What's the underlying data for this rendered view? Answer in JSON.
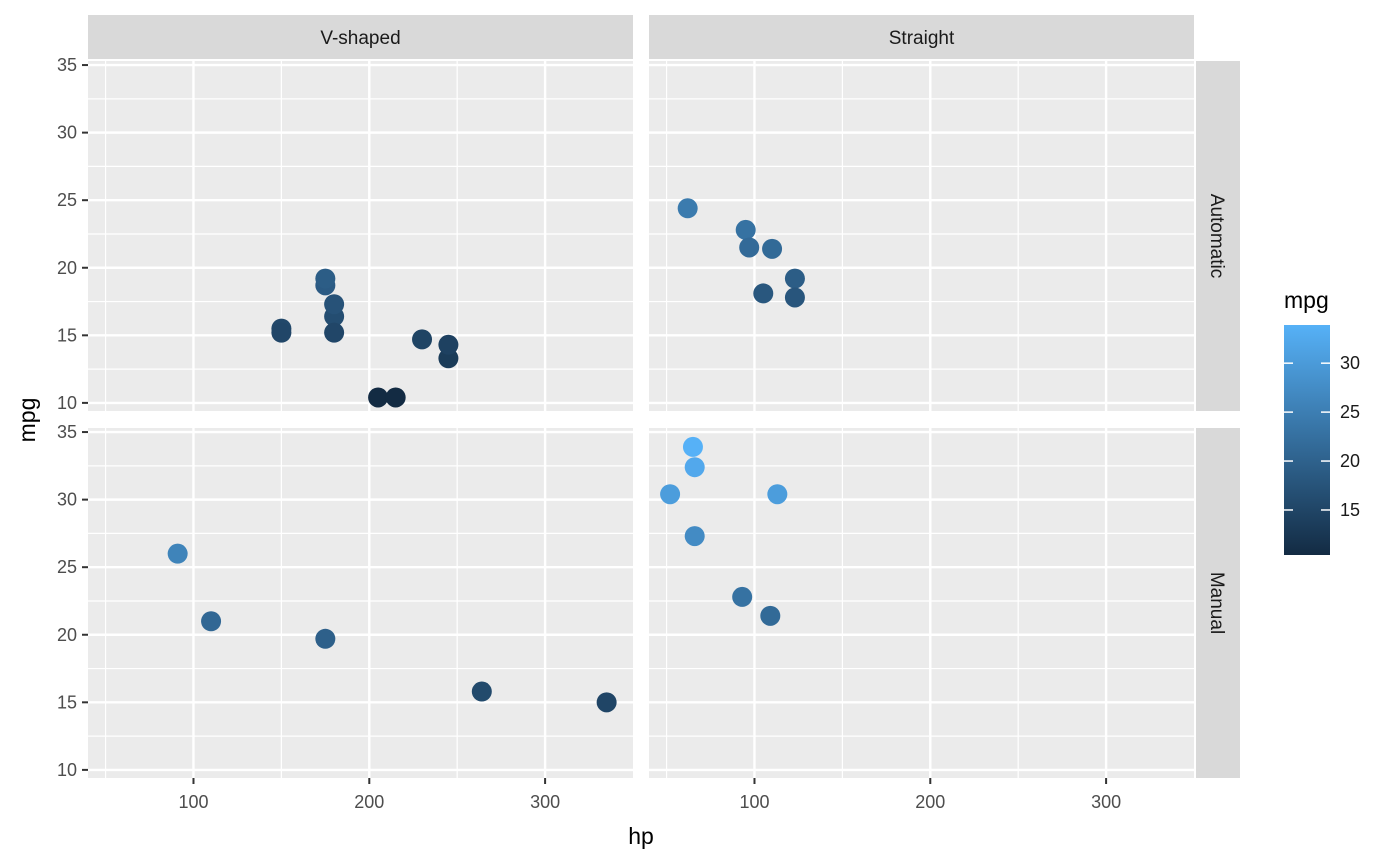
{
  "chart_data": {
    "type": "scatter",
    "xlabel": "hp",
    "ylabel": "mpg",
    "xlim": [
      40,
      350
    ],
    "ylim": [
      9.4,
      35.3
    ],
    "x_ticks": [
      100,
      200,
      300
    ],
    "y_ticks": [
      10,
      15,
      20,
      25,
      30,
      35
    ],
    "grid": true,
    "facet_cols": [
      "V-shaped",
      "Straight"
    ],
    "facet_rows": [
      "Automatic",
      "Manual"
    ],
    "color_legend": {
      "title": "mpg",
      "ticks": [
        15,
        20,
        25,
        30
      ],
      "range": [
        10.4,
        33.9
      ],
      "low_color": "#132B43",
      "high_color": "#56B1F7",
      "placement": "right"
    },
    "panels": [
      {
        "col": "V-shaped",
        "row": "Automatic",
        "points": [
          {
            "x": 175,
            "y": 18.7
          },
          {
            "x": 180,
            "y": 16.4
          },
          {
            "x": 180,
            "y": 17.3
          },
          {
            "x": 180,
            "y": 15.2
          },
          {
            "x": 205,
            "y": 10.4
          },
          {
            "x": 215,
            "y": 10.4
          },
          {
            "x": 230,
            "y": 14.7
          },
          {
            "x": 150,
            "y": 15.5
          },
          {
            "x": 150,
            "y": 15.2
          },
          {
            "x": 245,
            "y": 13.3
          },
          {
            "x": 175,
            "y": 19.2
          },
          {
            "x": 245,
            "y": 14.3
          }
        ]
      },
      {
        "col": "Straight",
        "row": "Automatic",
        "points": [
          {
            "x": 110,
            "y": 21.4
          },
          {
            "x": 105,
            "y": 18.1
          },
          {
            "x": 62,
            "y": 24.4
          },
          {
            "x": 95,
            "y": 22.8
          },
          {
            "x": 123,
            "y": 19.2
          },
          {
            "x": 123,
            "y": 17.8
          },
          {
            "x": 97,
            "y": 21.5
          }
        ]
      },
      {
        "col": "V-shaped",
        "row": "Manual",
        "points": [
          {
            "x": 110,
            "y": 21.0
          },
          {
            "x": 175,
            "y": 19.7
          },
          {
            "x": 91,
            "y": 26.0
          },
          {
            "x": 264,
            "y": 15.8
          },
          {
            "x": 335,
            "y": 15.0
          }
        ]
      },
      {
        "col": "Straight",
        "row": "Manual",
        "points": [
          {
            "x": 93,
            "y": 22.8
          },
          {
            "x": 66,
            "y": 32.4
          },
          {
            "x": 52,
            "y": 30.4
          },
          {
            "x": 65,
            "y": 33.9
          },
          {
            "x": 66,
            "y": 27.3
          },
          {
            "x": 113,
            "y": 30.4
          },
          {
            "x": 109,
            "y": 21.4
          }
        ]
      }
    ]
  }
}
